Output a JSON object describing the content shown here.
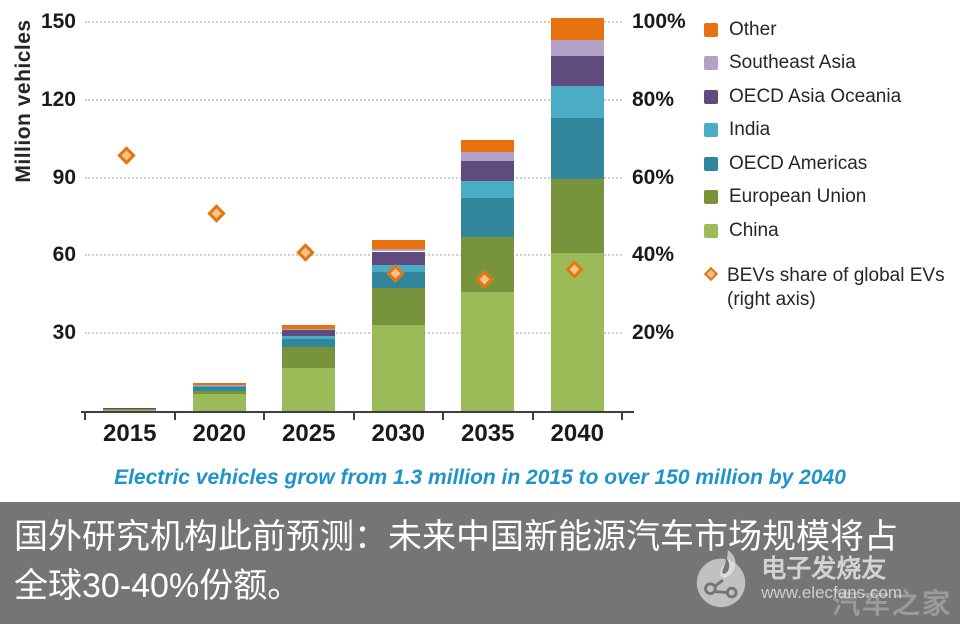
{
  "slide": {
    "subtitle": "Electric vehicles grow from 1.3 million in 2015 to over 150 million by 2040"
  },
  "chart_data": {
    "type": "bar",
    "stacked": true,
    "title": "",
    "categories": [
      "2015",
      "2020",
      "2025",
      "2030",
      "2035",
      "2040"
    ],
    "unit": "million vehicles",
    "series": [
      {
        "name": "China",
        "color": "#9BBB59",
        "values": [
          0.35,
          6.4,
          16.6,
          33.0,
          46.0,
          61.0
        ]
      },
      {
        "name": "European Union",
        "color": "#77933C",
        "values": [
          0.35,
          1.4,
          8.2,
          14.5,
          21.0,
          28.5
        ]
      },
      {
        "name": "OECD Americas",
        "color": "#31859C",
        "values": [
          0.4,
          1.5,
          2.8,
          6.0,
          15.0,
          23.5
        ]
      },
      {
        "name": "India",
        "color": "#4BACC6",
        "values": [
          0.05,
          0.2,
          1.2,
          2.8,
          6.5,
          12.5
        ]
      },
      {
        "name": "OECD Asia Oceania",
        "color": "#5F4B7E",
        "values": [
          0.1,
          0.6,
          2.6,
          5.2,
          8.0,
          11.5
        ]
      },
      {
        "name": "Southeast Asia",
        "color": "#B3A2C7",
        "values": [
          0.02,
          0.1,
          0.4,
          0.8,
          3.5,
          6.0
        ]
      },
      {
        "name": "Other",
        "color": "#E8710F",
        "values": [
          0.03,
          0.6,
          1.3,
          3.7,
          4.5,
          8.5
        ]
      }
    ],
    "totals": [
      1.3,
      10.8,
      33.1,
      66.0,
      104.5,
      151.5
    ],
    "scatter_series": {
      "name": "BEVs share of global EVs (right axis)",
      "values_percent": [
        65,
        50,
        40,
        34.5,
        33,
        35.5
      ],
      "marker": {
        "shape": "diamond",
        "fill": "#FAC090",
        "stroke": "#E2770F"
      }
    },
    "left_axis": {
      "label": "Million vehicles",
      "ticks": [
        30,
        60,
        90,
        120,
        150
      ],
      "min": 0,
      "max": 150
    },
    "right_axis": {
      "ticks": [
        "20%",
        "40%",
        "60%",
        "80%",
        "100%"
      ],
      "min": 0,
      "max": 100
    },
    "grid": "dotted horizontal",
    "legend_position": "right"
  },
  "legend": {
    "items": [
      {
        "label": "Other",
        "color": "#E8710F"
      },
      {
        "label": "Southeast Asia",
        "color": "#B3A2C7"
      },
      {
        "label": "OECD Asia Oceania",
        "color": "#5F4B7E"
      },
      {
        "label": "India",
        "color": "#4BACC6"
      },
      {
        "label": "OECD Americas",
        "color": "#31859C"
      },
      {
        "label": "European Union",
        "color": "#77933C"
      },
      {
        "label": "China",
        "color": "#9BBB59"
      }
    ],
    "marker_item": {
      "label": "BEVs share of global EVs",
      "sublabel": "(right axis)"
    }
  },
  "caption": {
    "lines": [
      "国外研究机构此前预测：未来中国新能源汽车市场规模将占",
      "全球30-40%份额。"
    ],
    "background": "#757575",
    "text_color": "#FFFFFF"
  },
  "watermark": {
    "brand": "电子发烧友",
    "url": "www.elecfans.com",
    "ghost_text": "汽车之家"
  }
}
